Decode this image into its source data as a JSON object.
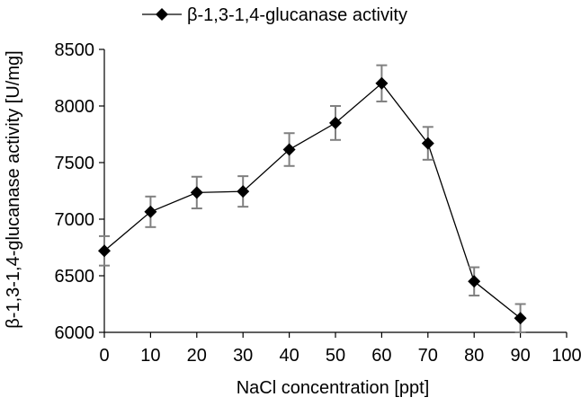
{
  "chart_data": {
    "type": "line",
    "title": "",
    "xlabel": "NaCl concentration [ppt]",
    "ylabel": "β-1,3-1,4-glucanase activity [U/mg]",
    "xlim": [
      0,
      100
    ],
    "ylim": [
      6000,
      8500
    ],
    "x_ticks": [
      0,
      10,
      20,
      30,
      40,
      50,
      60,
      70,
      80,
      90,
      100
    ],
    "y_ticks": [
      6000,
      6500,
      7000,
      7500,
      8000,
      8500
    ],
    "grid": false,
    "legend_position": "top-center",
    "series": [
      {
        "name": "β-1,3-1,4-glucanase  activity",
        "marker": "diamond",
        "x": [
          0,
          10,
          20,
          30,
          40,
          50,
          60,
          70,
          80,
          90
        ],
        "y": [
          6720,
          7065,
          7235,
          7245,
          7615,
          7850,
          8200,
          7670,
          6450,
          6125
        ],
        "error": [
          130,
          135,
          140,
          135,
          145,
          150,
          160,
          145,
          125,
          125
        ]
      }
    ],
    "colors": {
      "line": "#000000",
      "marker": "#000000",
      "error_bar": "#808080",
      "axis": "#000000"
    }
  }
}
